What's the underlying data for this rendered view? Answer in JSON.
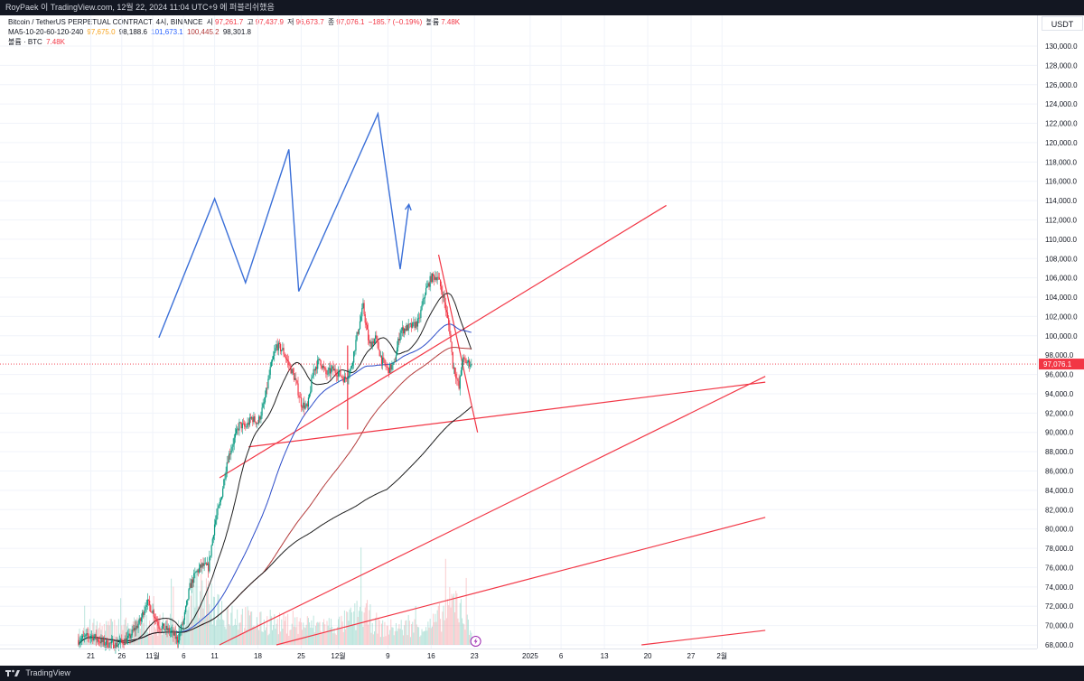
{
  "header": {
    "text": "RoyPaek 이 TradingView.com, 12월 22, 2024 11:04 UTC+9 에 퍼블리쉬했음"
  },
  "legend": {
    "line1": {
      "symbol": "Bitcoin / TetherUS PERPETUAL CONTRACT, 4시, BINANCE",
      "open_label": "시",
      "open": "97,261.7",
      "high_label": "고",
      "high": "97,437.9",
      "low_label": "저",
      "low": "96,673.7",
      "close_label": "종",
      "close": "97,076.1",
      "change": "−185.7 (−0.19%)",
      "vol_label": "볼륨",
      "vol": "7.48K"
    },
    "line2": {
      "label": "MA5-10-20-60-120-240",
      "v1": "97,675.0",
      "v2": "98,188.6",
      "v3": "101,673.1",
      "v4": "100,445.2",
      "v5": "98,301.8"
    },
    "line3": {
      "label": "볼륨 · BTC",
      "value": "7.48K"
    }
  },
  "currency_label": "USDT",
  "footer": {
    "brand": "TradingView"
  },
  "colors": {
    "up": "#089981",
    "down": "#f23645",
    "trend": "#f23645",
    "zigzag": "#3a6fd8",
    "ma_dark": "#1f1f1f",
    "ma_blue": "#2c4cc9",
    "ma_brown": "#b33a3a"
  },
  "chart_data": {
    "type": "candlestick",
    "ylim": [
      68000,
      130000
    ],
    "y_ticks": [
      130000,
      128000,
      126000,
      124000,
      122000,
      120000,
      118000,
      116000,
      114000,
      112000,
      110000,
      108000,
      106000,
      104000,
      102000,
      100000,
      98000,
      96000,
      94000,
      92000,
      90000,
      88000,
      86000,
      84000,
      82000,
      80000,
      78000,
      76000,
      74000,
      72000,
      70000,
      68000
    ],
    "y_tick_labels": [
      "130,000.0",
      "128,000.0",
      "126,000.0",
      "124,000.0",
      "122,000.0",
      "120,000.0",
      "118,000.0",
      "116,000.0",
      "114,000.0",
      "112,000.0",
      "110,000.0",
      "108,000.0",
      "106,000.0",
      "104,000.0",
      "102,000.0",
      "100,000.0",
      "98,000.0",
      "96,000.0",
      "94,000.0",
      "92,000.0",
      "90,000.0",
      "88,000.0",
      "86,000.0",
      "84,000.0",
      "82,000.0",
      "80,000.0",
      "78,000.0",
      "76,000.0",
      "74,000.0",
      "72,000.0",
      "70,000.0",
      "68,000.0"
    ],
    "last_price": 97076.1,
    "last_price_label": "97,076.1",
    "x_ticks": [
      {
        "label": "21",
        "day": -17
      },
      {
        "label": "26",
        "day": -12
      },
      {
        "label": "11월",
        "day": -7
      },
      {
        "label": "6",
        "day": -2
      },
      {
        "label": "11",
        "day": 3
      },
      {
        "label": "18",
        "day": 10
      },
      {
        "label": "25",
        "day": 17
      },
      {
        "label": "12월",
        "day": 23
      },
      {
        "label": "9",
        "day": 31
      },
      {
        "label": "16",
        "day": 38
      },
      {
        "label": "23",
        "day": 45
      },
      {
        "label": "2025",
        "day": 54
      },
      {
        "label": "6",
        "day": 59
      },
      {
        "label": "13",
        "day": 66
      },
      {
        "label": "20",
        "day": 73
      },
      {
        "label": "27",
        "day": 80
      },
      {
        "label": "2월",
        "day": 85
      }
    ],
    "price_waypoints": [
      [
        -19,
        68500
      ],
      [
        -17,
        69000
      ],
      [
        -15,
        68200
      ],
      [
        -13,
        68000
      ],
      [
        -11,
        68600
      ],
      [
        -9,
        70500
      ],
      [
        -8,
        72500
      ],
      [
        -7,
        71500
      ],
      [
        -6,
        70000
      ],
      [
        -4,
        69300
      ],
      [
        -3,
        68500
      ],
      [
        -2,
        70500
      ],
      [
        -1,
        74000
      ],
      [
        0,
        75500
      ],
      [
        1,
        76200
      ],
      [
        2,
        76000
      ],
      [
        3,
        80500
      ],
      [
        4,
        83000
      ],
      [
        5,
        87000
      ],
      [
        6,
        89000
      ],
      [
        7,
        90800
      ],
      [
        8,
        90500
      ],
      [
        9,
        91500
      ],
      [
        10,
        91000
      ],
      [
        11,
        93000
      ],
      [
        12,
        96500
      ],
      [
        13,
        99000
      ],
      [
        14,
        98500
      ],
      [
        15,
        97000
      ],
      [
        16,
        95500
      ],
      [
        17,
        93000
      ],
      [
        18,
        92500
      ],
      [
        19,
        96500
      ],
      [
        20,
        97500
      ],
      [
        21,
        96000
      ],
      [
        22,
        96500
      ],
      [
        23,
        96200
      ],
      [
        24,
        95500
      ],
      [
        25,
        96500
      ],
      [
        26,
        100000
      ],
      [
        27,
        103000
      ],
      [
        28,
        99000
      ],
      [
        29,
        99800
      ],
      [
        30,
        97500
      ],
      [
        31,
        96500
      ],
      [
        32,
        97000
      ],
      [
        33,
        100500
      ],
      [
        34,
        100800
      ],
      [
        35,
        101000
      ],
      [
        36,
        101500
      ],
      [
        37,
        104500
      ],
      [
        38,
        106000
      ],
      [
        39,
        106200
      ],
      [
        40,
        104000
      ],
      [
        41,
        100500
      ],
      [
        41.5,
        97000
      ],
      [
        42,
        96000
      ],
      [
        42.5,
        94500
      ],
      [
        43,
        97500
      ],
      [
        44,
        97200
      ],
      [
        44.6,
        97076
      ]
    ],
    "volume_profile": [
      [
        -19,
        0.3
      ],
      [
        -2,
        0.4
      ],
      [
        0,
        0.9
      ],
      [
        5,
        0.6
      ],
      [
        10,
        0.4
      ],
      [
        23,
        0.35
      ],
      [
        27,
        0.6
      ],
      [
        30,
        0.3
      ],
      [
        38,
        0.35
      ],
      [
        42,
        0.8
      ],
      [
        44.6,
        0.2
      ]
    ],
    "moving_averages": [
      {
        "name": "MA20",
        "color_key": "ma_dark",
        "window": 120
      },
      {
        "name": "MA60",
        "color_key": "ma_blue",
        "window": 360
      },
      {
        "name": "MA240",
        "color_key": "ma_brown",
        "window": 720
      },
      {
        "name": "MA120",
        "color_key": "ma_dark",
        "window": 1200
      }
    ],
    "trendlines": [
      {
        "from": [
          3.8,
          85300
        ],
        "to": [
          76,
          113500
        ]
      },
      {
        "from": [
          8.5,
          88500
        ],
        "to": [
          92,
          95200
        ]
      },
      {
        "from": [
          3.8,
          68000
        ],
        "to": [
          92,
          95800
        ]
      },
      {
        "from": [
          13,
          68000
        ],
        "to": [
          92,
          81200
        ]
      },
      {
        "from": [
          72,
          68000
        ],
        "to": [
          92,
          69500
        ]
      },
      {
        "from": [
          39.2,
          108400
        ],
        "to": [
          45.5,
          90000
        ]
      },
      {
        "from": [
          24.5,
          90300
        ],
        "to": [
          24.5,
          99000
        ]
      }
    ],
    "projection_zigzag": [
      [
        -6,
        99800
      ],
      [
        3,
        114200
      ],
      [
        8,
        105500
      ],
      [
        15,
        119300
      ],
      [
        16.6,
        104600
      ],
      [
        29.4,
        123000
      ],
      [
        33,
        106900
      ],
      [
        34.4,
        113600
      ]
    ]
  }
}
